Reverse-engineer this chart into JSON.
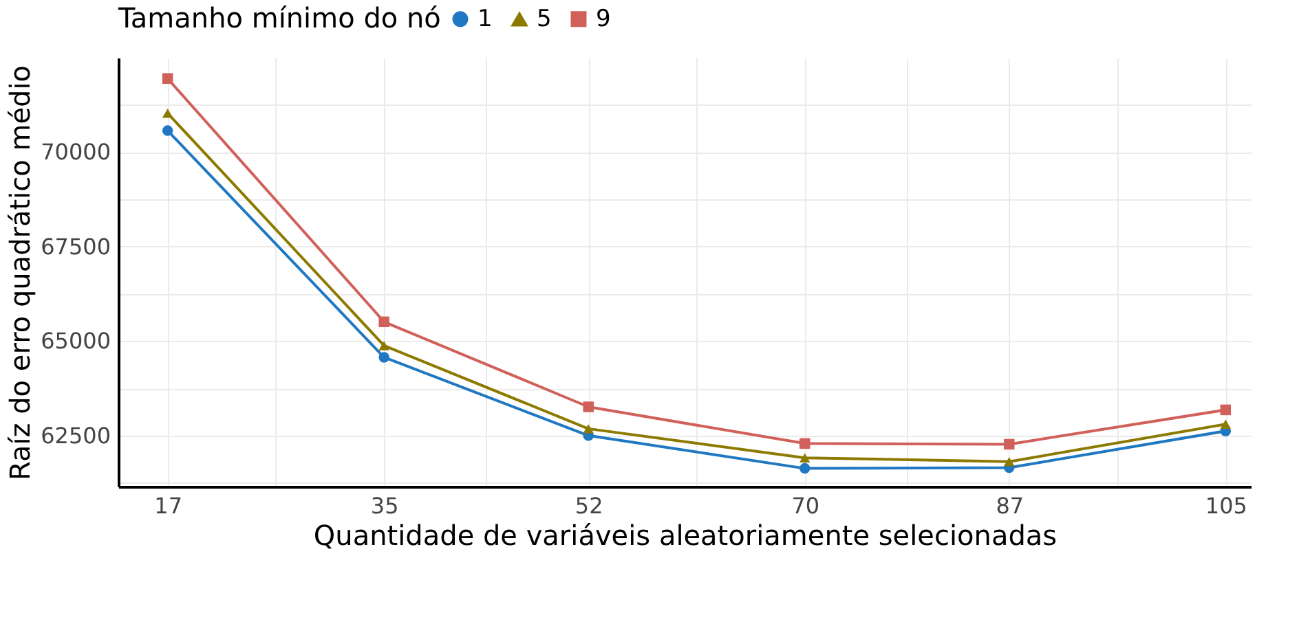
{
  "chart_data": {
    "type": "line",
    "xlabel": "Quantidade de variáveis aleatoriamente selecionadas",
    "ylabel": "Raíz do erro quadrático médio",
    "legend_title": "Tamanho mínimo do nó",
    "x": [
      17,
      35,
      52,
      70,
      87,
      105
    ],
    "series": [
      {
        "name": "1",
        "color": "#1f78c1",
        "marker": "circle",
        "values": [
          70570,
          64570,
          62500,
          61630,
          61650,
          62620
        ]
      },
      {
        "name": "5",
        "color": "#8c7a00",
        "marker": "triangle",
        "values": [
          71030,
          64880,
          62680,
          61910,
          61810,
          62800
        ]
      },
      {
        "name": "9",
        "color": "#d1605a",
        "marker": "square",
        "values": [
          71950,
          65510,
          63260,
          62290,
          62270,
          63180
        ]
      }
    ],
    "xlim": [
      12.9,
      107.1
    ],
    "xticks": [
      17,
      {
        "value": 26,
        "label": null
      },
      35,
      {
        "value": 43.5,
        "label": null
      },
      52,
      {
        "value": 61,
        "label": null
      },
      70,
      {
        "value": 78.5,
        "label": null
      },
      87,
      {
        "value": 96,
        "label": null
      },
      105
    ],
    "ylim": [
      61150,
      72500
    ],
    "yticks": [
      {
        "value": 61250,
        "label": null
      },
      62500,
      {
        "value": 63750,
        "label": null
      },
      65000,
      {
        "value": 66250,
        "label": null
      },
      67500,
      {
        "value": 68750,
        "label": null
      },
      70000,
      {
        "value": 71250,
        "label": null
      }
    ],
    "grid": true,
    "legend": "top",
    "line_style": "solid"
  }
}
